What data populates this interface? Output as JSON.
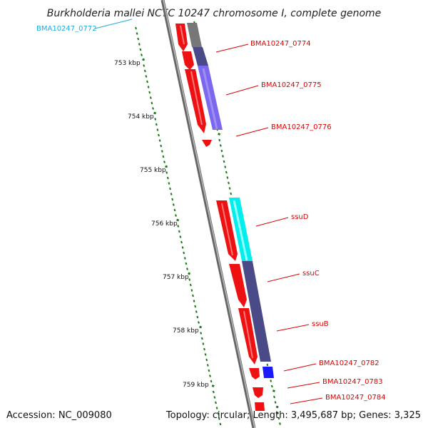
{
  "title": "Burkholderia mallei NCTC 10247 chromosome I, complete genome",
  "footer": {
    "accession": "Accession: NC_009080",
    "summary": "Topology: circular; Length: 3,495,687 bp; Genes: 3,325"
  },
  "colors": {
    "backbone": "#888888",
    "tick": "#1a7a1a",
    "cds_red": "#ee1111",
    "label_red": "#dd0000",
    "label_cyan": "#22aadd",
    "gray_feature": "#777777",
    "slate_feature": "#4a4a88",
    "lavender_feature": "#7b68ee",
    "cyan_feature": "#00eeee",
    "blue_feature": "#1a1aff"
  },
  "scale_labels": [
    "753 kbp",
    "754 kbp",
    "755 kbp",
    "756 kbp",
    "757 kbp",
    "758 kbp",
    "759 kbp"
  ],
  "gene_labels": [
    {
      "text": "BMA10247_0772",
      "color": "cyan"
    },
    {
      "text": "BMA10247_0774",
      "color": "red"
    },
    {
      "text": "BMA10247_0775",
      "color": "red"
    },
    {
      "text": "BMA10247_0776",
      "color": "red"
    },
    {
      "text": "ssuD",
      "color": "red"
    },
    {
      "text": "ssuC",
      "color": "red"
    },
    {
      "text": "ssuB",
      "color": "red"
    },
    {
      "text": "BMA10247_0782",
      "color": "red"
    },
    {
      "text": "BMA10247_0783",
      "color": "red"
    },
    {
      "text": "BMA10247_0784",
      "color": "red"
    }
  ]
}
